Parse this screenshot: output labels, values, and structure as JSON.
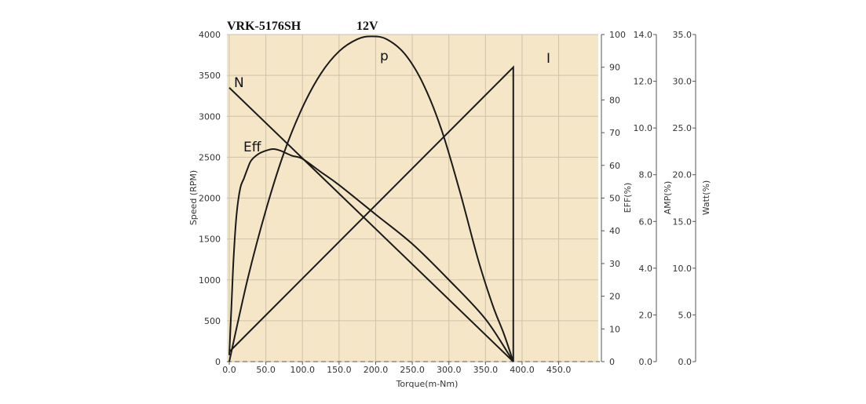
{
  "title": {
    "model": "VRK-5176SH",
    "voltage": "12V"
  },
  "colors": {
    "plot_background": "#f5e6c8",
    "grid": "#cfc2a6",
    "curve": "#1a1a1a"
  },
  "chart_data": {
    "type": "line",
    "title": "VRK-5176SH 12V",
    "grid": true,
    "x_axis": {
      "label": "Torque(m-Nm)",
      "range": [
        0,
        450
      ],
      "ticks": [
        0,
        50,
        100,
        150,
        200,
        250,
        300,
        350,
        400,
        450
      ],
      "tick_labels": [
        "0.0",
        "50.0",
        "100.0",
        "150.0",
        "200.0",
        "250.0",
        "300.0",
        "350.0",
        "400.0",
        "450.0"
      ]
    },
    "y_axes": [
      {
        "id": "speed",
        "label": "Speed (RPM)",
        "range": [
          0,
          4000
        ],
        "ticks": [
          0,
          500,
          1000,
          1500,
          2000,
          2500,
          3000,
          3500,
          4000
        ],
        "tick_labels": [
          "0",
          "500",
          "1000",
          "1500",
          "2000",
          "2500",
          "3000",
          "3500",
          "4000"
        ]
      },
      {
        "id": "eff",
        "label": "EFF(%)",
        "range": [
          0,
          100
        ],
        "ticks": [
          0,
          10,
          20,
          30,
          40,
          50,
          60,
          70,
          80,
          90,
          100
        ],
        "tick_labels": [
          "0",
          "10",
          "20",
          "30",
          "40",
          "50",
          "60",
          "70",
          "80",
          "90",
          "100"
        ]
      },
      {
        "id": "amp",
        "label": "AMP(%)",
        "range": [
          0,
          14
        ],
        "ticks": [
          0,
          2,
          4,
          6,
          8,
          10,
          12,
          14
        ],
        "tick_labels": [
          "0.0",
          "2.0",
          "4.0",
          "6.0",
          "8.0",
          "10.0",
          "12.0",
          "14.0"
        ]
      },
      {
        "id": "watt",
        "label": "Watt(%)",
        "range": [
          0,
          35
        ],
        "ticks": [
          0,
          5,
          10,
          15,
          20,
          25,
          30,
          35
        ],
        "tick_labels": [
          "0.0",
          "5.0",
          "10.0",
          "15.0",
          "20.0",
          "25.0",
          "30.0",
          "35.0"
        ]
      }
    ],
    "series": [
      {
        "name": "N",
        "axis": "speed",
        "x": [
          0,
          388
        ],
        "y": [
          3350,
          0
        ]
      },
      {
        "name": "I",
        "axis": "amp",
        "x": [
          0,
          388,
          388
        ],
        "y": [
          0.42,
          12.6,
          0
        ]
      },
      {
        "name": "P",
        "axis": "watt",
        "x": [
          0,
          25,
          50,
          75,
          100,
          125,
          150,
          175,
          194,
          215,
          240,
          265,
          290,
          315,
          340,
          360,
          375,
          388
        ],
        "y": [
          0,
          8.8,
          16.2,
          22.4,
          27.2,
          30.8,
          33.2,
          34.5,
          34.8,
          34.5,
          32.9,
          29.7,
          24.8,
          18.2,
          10.9,
          6.0,
          3.0,
          0
        ]
      },
      {
        "name": "Eff",
        "axis": "eff",
        "x": [
          0,
          3,
          6,
          10,
          15,
          20,
          25,
          30,
          40,
          50,
          60,
          70,
          85,
          100,
          125,
          150,
          200,
          250,
          300,
          350,
          388
        ],
        "y": [
          2,
          17,
          32,
          45,
          53,
          56,
          59,
          61.5,
          63.5,
          64.5,
          65,
          64.5,
          63,
          62,
          58,
          54,
          45,
          36,
          25,
          13,
          0
        ]
      }
    ],
    "annotations": [
      {
        "text": "N",
        "series": "N"
      },
      {
        "text": "p",
        "series": "P"
      },
      {
        "text": "I",
        "series": "I"
      },
      {
        "text": "Eff",
        "series": "Eff"
      }
    ]
  }
}
